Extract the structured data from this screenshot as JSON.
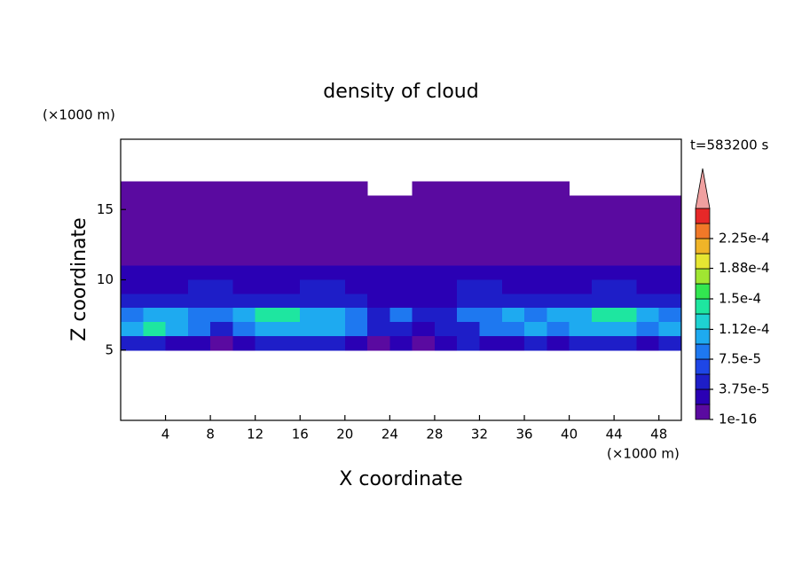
{
  "chart_data": {
    "type": "contour",
    "title": "density of cloud",
    "time_label": "t=583200 s",
    "x_label": "X coordinate",
    "y_label": "Z coordinate",
    "x_unit": "(×1000 m)",
    "y_unit": "(×1000 m)",
    "xlim": [
      0,
      50
    ],
    "ylim": [
      0,
      20
    ],
    "xticks": [
      4,
      8,
      12,
      16,
      20,
      24,
      28,
      32,
      36,
      40,
      44,
      48
    ],
    "yticks": [
      5,
      10,
      15
    ],
    "levels": [
      {
        "value": 1e-16,
        "label": "1e-16"
      },
      {
        "value": 3.75e-05,
        "label": "3.75e-5"
      },
      {
        "value": 7.5e-05,
        "label": "7.5e-5"
      },
      {
        "value": 0.000112,
        "label": "1.12e-4"
      },
      {
        "value": 0.00015,
        "label": "1.5e-4"
      },
      {
        "value": 0.000188,
        "label": "1.88e-4"
      },
      {
        "value": 0.000225,
        "label": "2.25e-4"
      }
    ],
    "colors": [
      "#5a0aa0",
      "#2a00b4",
      "#1e1ec8",
      "#1e46e6",
      "#1e78f0",
      "#1eaaf0",
      "#1ed2d2",
      "#1ee6a0",
      "#32e650",
      "#a0e632",
      "#e6e632",
      "#f0b428",
      "#f07828",
      "#e62828",
      "#f0a0a0"
    ],
    "x": [
      1,
      3,
      5,
      7,
      9,
      11,
      13,
      15,
      17,
      19,
      21,
      23,
      25,
      27,
      29,
      31,
      33,
      35,
      37,
      39,
      41,
      43,
      45,
      47,
      49
    ],
    "y": [
      16.5,
      15.5,
      14.5,
      13.5,
      12.5,
      11.5,
      10.5,
      9.5,
      8.5,
      7.5,
      6.5,
      5.5
    ],
    "z": [
      [
        1e-06,
        1e-06,
        1e-06,
        1e-06,
        1e-06,
        1e-06,
        1e-06,
        1e-06,
        1e-06,
        1e-06,
        1e-06,
        null,
        null,
        1e-06,
        1e-06,
        1e-06,
        1e-06,
        1e-06,
        1e-06,
        1e-06,
        null,
        null,
        null,
        null,
        null
      ],
      [
        1e-06,
        1e-06,
        1e-06,
        1e-06,
        1e-06,
        1e-06,
        1e-06,
        1e-06,
        1e-06,
        1e-06,
        1e-06,
        1e-06,
        1e-06,
        1e-06,
        1e-06,
        1e-06,
        1e-06,
        1e-06,
        1e-06,
        1e-06,
        1e-06,
        1e-06,
        1e-06,
        1e-06,
        1e-06
      ],
      [
        1e-06,
        1e-06,
        1e-06,
        1e-06,
        1e-06,
        1e-06,
        1e-06,
        1e-06,
        1e-06,
        1e-06,
        1e-06,
        1e-06,
        1e-06,
        1e-06,
        1e-06,
        1e-06,
        1e-06,
        1e-06,
        1e-06,
        1e-06,
        1e-06,
        1e-06,
        1e-06,
        1e-06,
        1e-06
      ],
      [
        1e-06,
        1e-06,
        1e-06,
        1e-06,
        1e-06,
        1e-06,
        1e-06,
        1e-06,
        1e-06,
        1e-06,
        1e-06,
        1e-06,
        1e-06,
        1e-06,
        1e-06,
        1e-06,
        1e-06,
        1e-06,
        1e-06,
        1e-06,
        1e-06,
        1e-06,
        1e-06,
        1e-06,
        1e-06
      ],
      [
        1e-06,
        1e-06,
        1e-06,
        1e-06,
        1e-06,
        1e-06,
        1e-06,
        1e-06,
        1e-06,
        1e-06,
        1e-06,
        1e-06,
        1e-06,
        1e-06,
        1e-06,
        1e-06,
        1e-06,
        1e-06,
        1e-06,
        1e-06,
        1e-06,
        1e-06,
        1e-06,
        1e-06,
        1e-06
      ],
      [
        1e-06,
        1e-06,
        1e-06,
        1e-06,
        1e-06,
        1e-06,
        1e-06,
        1e-06,
        1e-06,
        1e-06,
        1e-06,
        1e-06,
        1e-06,
        1e-06,
        1e-06,
        1e-06,
        1e-06,
        1e-06,
        1e-06,
        1e-06,
        1e-06,
        1e-06,
        1e-06,
        1e-06,
        1e-06
      ],
      [
        2.5e-05,
        2.5e-05,
        2.5e-05,
        2.5e-05,
        2.5e-05,
        2.5e-05,
        2.5e-05,
        2.5e-05,
        2.5e-05,
        2.5e-05,
        2.5e-05,
        2.5e-05,
        2.5e-05,
        2.5e-05,
        2.5e-05,
        2.5e-05,
        2.5e-05,
        2.5e-05,
        2.5e-05,
        2.5e-05,
        2.5e-05,
        2.5e-05,
        2.5e-05,
        2.5e-05,
        2.5e-05
      ],
      [
        2.5e-05,
        2.5e-05,
        2.5e-05,
        5e-05,
        5e-05,
        2.5e-05,
        2.5e-05,
        2.5e-05,
        5e-05,
        5e-05,
        2.5e-05,
        2.5e-05,
        2.5e-05,
        2.5e-05,
        2.5e-05,
        5e-05,
        5e-05,
        2.5e-05,
        2.5e-05,
        2.5e-05,
        2.5e-05,
        5e-05,
        5e-05,
        2.5e-05,
        2.5e-05
      ],
      [
        5e-05,
        5e-05,
        5e-05,
        5e-05,
        5e-05,
        5e-05,
        5e-05,
        5e-05,
        5e-05,
        5e-05,
        5e-05,
        2.5e-05,
        2.5e-05,
        2.5e-05,
        2.5e-05,
        5e-05,
        5e-05,
        5e-05,
        5e-05,
        5e-05,
        5e-05,
        5e-05,
        5e-05,
        5e-05,
        5e-05
      ],
      [
        8e-05,
        0.00011,
        0.00011,
        8e-05,
        8e-05,
        0.00011,
        0.000135,
        0.000135,
        0.00011,
        0.00011,
        8e-05,
        5e-05,
        8e-05,
        5e-05,
        5e-05,
        8e-05,
        8e-05,
        0.00011,
        8e-05,
        0.00011,
        0.00011,
        0.000135,
        0.000135,
        0.00011,
        8e-05
      ],
      [
        0.00011,
        0.000135,
        0.00011,
        8e-05,
        5e-05,
        8e-05,
        0.00011,
        0.00011,
        0.00011,
        0.00011,
        8e-05,
        5e-05,
        5e-05,
        2.5e-05,
        5e-05,
        5e-05,
        8e-05,
        8e-05,
        0.00011,
        8e-05,
        0.00011,
        0.00011,
        0.00011,
        8e-05,
        0.00011
      ],
      [
        5e-05,
        5e-05,
        2.5e-05,
        2.5e-05,
        1e-06,
        2.5e-05,
        5e-05,
        5e-05,
        5e-05,
        5e-05,
        2.5e-05,
        1e-06,
        2.5e-05,
        1e-06,
        2.5e-05,
        5e-05,
        2.5e-05,
        2.5e-05,
        5e-05,
        2.5e-05,
        5e-05,
        5e-05,
        5e-05,
        2.5e-05,
        5e-05
      ]
    ]
  }
}
